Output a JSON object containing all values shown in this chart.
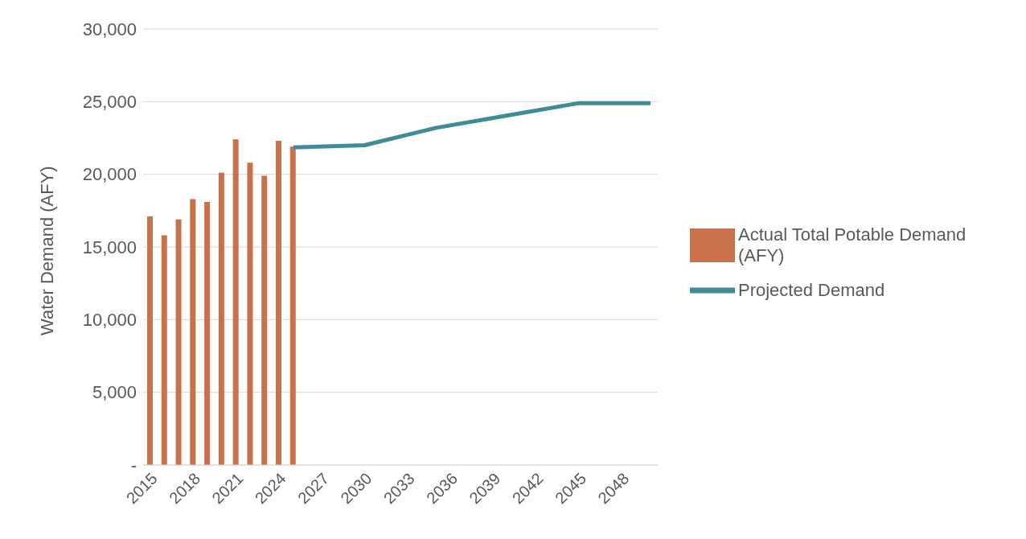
{
  "chart_data": {
    "type": "bar",
    "ylabel": "Water Demand (AFY)",
    "categories": [
      "2015",
      null,
      null,
      "2018",
      null,
      null,
      "2021",
      null,
      null,
      "2024",
      null,
      null,
      "2027",
      null,
      null,
      "2030",
      null,
      null,
      "2033",
      null,
      null,
      "2036",
      null,
      null,
      "2039",
      null,
      null,
      "2042",
      null,
      null,
      "2045",
      null,
      null,
      "2048",
      null,
      null
    ],
    "series": [
      {
        "name": "Actual Total Potable Demand (AFY)",
        "color": "#c8714a",
        "values": [
          17100,
          15800,
          16900,
          18300,
          18100,
          20100,
          22400,
          20800,
          19900,
          22300,
          21900,
          null,
          null,
          null,
          null,
          null,
          null,
          null,
          null,
          null,
          null,
          null,
          null,
          null,
          null,
          null,
          null,
          null,
          null,
          null,
          null,
          null,
          null,
          null,
          null,
          null
        ]
      },
      {
        "name": "Projected Demand",
        "type": "line",
        "color": "#3d8c96",
        "values": [
          null,
          null,
          null,
          null,
          null,
          null,
          null,
          null,
          null,
          null,
          21850,
          null,
          null,
          null,
          null,
          22000,
          null,
          null,
          null,
          null,
          23200,
          null,
          null,
          null,
          null,
          24050,
          null,
          null,
          null,
          null,
          24900,
          null,
          null,
          null,
          null,
          24900
        ]
      }
    ],
    "ylim": [
      0,
      30000
    ],
    "yticks": [
      {
        "value": 0,
        "label": "-"
      },
      {
        "value": 5000,
        "label": "5,000"
      },
      {
        "value": 10000,
        "label": "10,000"
      },
      {
        "value": 15000,
        "label": "15,000"
      },
      {
        "value": 20000,
        "label": "20,000"
      },
      {
        "value": 25000,
        "label": "25,000"
      },
      {
        "value": 30000,
        "label": "30,000"
      }
    ],
    "grid": "y",
    "legend": "right"
  }
}
